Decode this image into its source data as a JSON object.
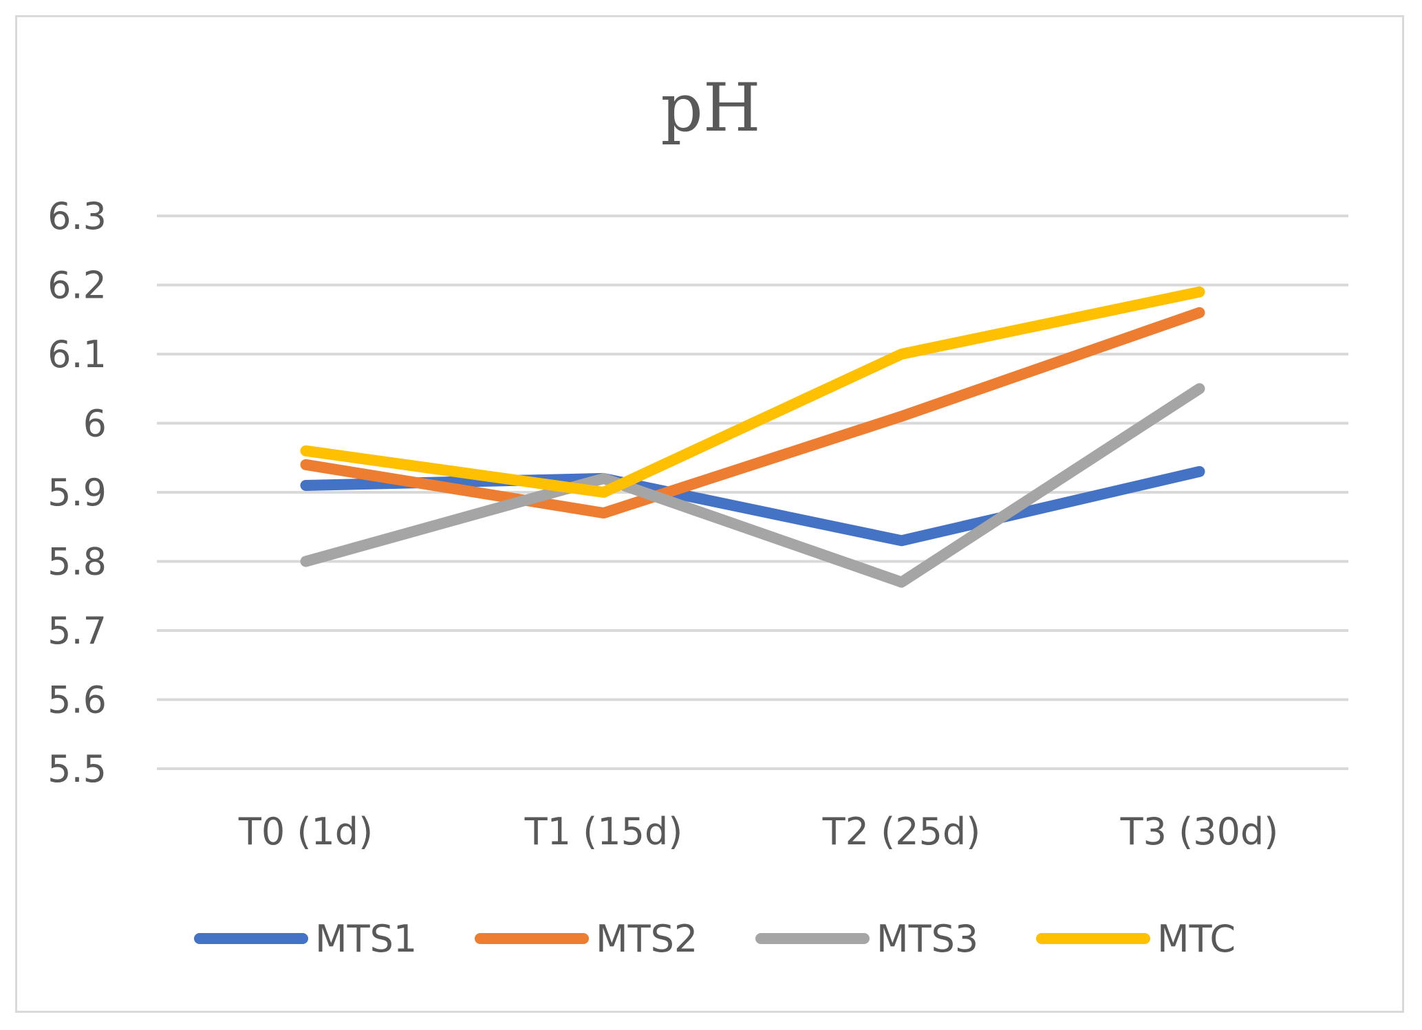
{
  "chart_data": {
    "type": "line",
    "title": "pH",
    "xlabel": "",
    "ylabel": "",
    "categories": [
      "T0 (1d)",
      "T1 (15d)",
      "T2 (25d)",
      "T3 (30d)"
    ],
    "ylim": [
      5.5,
      6.3
    ],
    "yticks": [
      "5.5",
      "5.6",
      "5.7",
      "5.8",
      "5.9",
      "6",
      "6.1",
      "6.2",
      "6.3"
    ],
    "grid": true,
    "legend_position": "bottom",
    "series": [
      {
        "name": "MTS1",
        "color": "#4472c4",
        "values": [
          5.91,
          5.92,
          5.83,
          5.93
        ]
      },
      {
        "name": "MTS2",
        "color": "#ed7d31",
        "values": [
          5.94,
          5.87,
          6.01,
          6.16
        ]
      },
      {
        "name": "MTS3",
        "color": "#a5a5a5",
        "values": [
          5.8,
          5.92,
          5.77,
          6.05
        ]
      },
      {
        "name": "MTC",
        "color": "#ffc000",
        "values": [
          5.96,
          5.9,
          6.1,
          6.19
        ]
      }
    ]
  }
}
